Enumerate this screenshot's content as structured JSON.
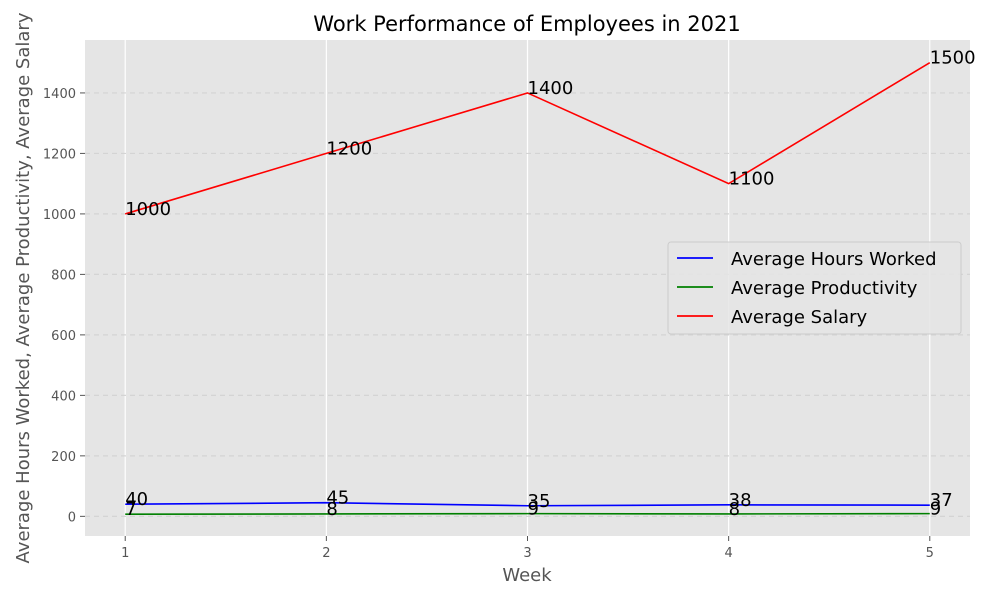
{
  "chart_data": {
    "type": "line",
    "title": "Work Performance of Employees in 2021",
    "xlabel": "Week",
    "ylabel": "Average Hours Worked, Average Productivity, Average Salary",
    "x": [
      1,
      2,
      3,
      4,
      5
    ],
    "xlim": [
      0.8,
      5.2
    ],
    "ylim": [
      -65,
      1575
    ],
    "yticks": [
      0,
      200,
      400,
      600,
      800,
      1000,
      1200,
      1400
    ],
    "grid": true,
    "legend_position": "center-right",
    "series": [
      {
        "name": "Average Hours Worked",
        "values": [
          40,
          45,
          35,
          38,
          37
        ],
        "color": "#0000ff"
      },
      {
        "name": "Average Productivity",
        "values": [
          7,
          8,
          9,
          8,
          9
        ],
        "color": "#008000"
      },
      {
        "name": "Average Salary",
        "values": [
          1000,
          1200,
          1400,
          1100,
          1500
        ],
        "color": "#ff0000"
      }
    ],
    "colors": {
      "plot_background": "#e5e5e5",
      "grid": "#ffffff",
      "grid_dashed": "#d4d4d4"
    }
  }
}
